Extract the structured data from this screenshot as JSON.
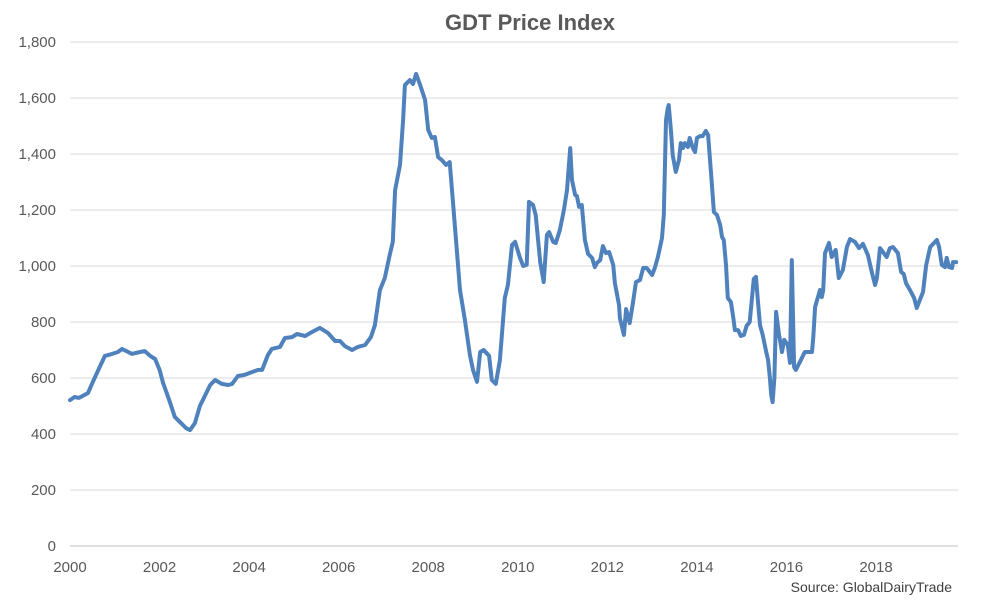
{
  "chart_data": {
    "type": "line",
    "title": "GDT Price Index",
    "xlabel": "",
    "ylabel": "",
    "source": "Source: GlobalDairyTrade",
    "xlim": [
      2000,
      2019.83
    ],
    "ylim": [
      0,
      1800
    ],
    "grid": true,
    "legend": "none",
    "line_color": "#4F81BD",
    "x_ticks": [
      2000,
      2002,
      2004,
      2006,
      2008,
      2010,
      2012,
      2014,
      2016,
      2018
    ],
    "x_tick_labels": [
      "2000",
      "2002",
      "2004",
      "2006",
      "2008",
      "2010",
      "2012",
      "2014",
      "2016",
      "2018"
    ],
    "y_ticks": [
      0,
      200,
      400,
      600,
      800,
      1000,
      1200,
      1400,
      1600,
      1800
    ],
    "y_tick_labels": [
      "0",
      "200",
      "400",
      "600",
      "800",
      "1,000",
      "1,200",
      "1,400",
      "1,600",
      "1,800"
    ],
    "series": [
      {
        "name": "GDT Price Index",
        "points": [
          [
            2000.0,
            521
          ],
          [
            2000.1,
            532
          ],
          [
            2000.2,
            529
          ],
          [
            2000.4,
            546
          ],
          [
            2000.56,
            604
          ],
          [
            2000.78,
            679
          ],
          [
            2000.94,
            686
          ],
          [
            2001.07,
            693
          ],
          [
            2001.16,
            704
          ],
          [
            2001.3,
            693
          ],
          [
            2001.38,
            686
          ],
          [
            2001.56,
            693
          ],
          [
            2001.67,
            696
          ],
          [
            2001.79,
            679
          ],
          [
            2001.9,
            668
          ],
          [
            2002.0,
            629
          ],
          [
            2002.08,
            582
          ],
          [
            2002.23,
            514
          ],
          [
            2002.34,
            461
          ],
          [
            2002.5,
            436
          ],
          [
            2002.59,
            421
          ],
          [
            2002.68,
            414
          ],
          [
            2002.79,
            439
          ],
          [
            2002.9,
            500
          ],
          [
            2003.0,
            532
          ],
          [
            2003.13,
            575
          ],
          [
            2003.24,
            593
          ],
          [
            2003.39,
            579
          ],
          [
            2003.53,
            575
          ],
          [
            2003.62,
            579
          ],
          [
            2003.75,
            607
          ],
          [
            2003.9,
            611
          ],
          [
            2004.06,
            621
          ],
          [
            2004.2,
            629
          ],
          [
            2004.29,
            629
          ],
          [
            2004.42,
            682
          ],
          [
            2004.51,
            704
          ],
          [
            2004.69,
            711
          ],
          [
            2004.8,
            743
          ],
          [
            2004.96,
            746
          ],
          [
            2005.07,
            757
          ],
          [
            2005.25,
            750
          ],
          [
            2005.4,
            764
          ],
          [
            2005.58,
            779
          ],
          [
            2005.76,
            761
          ],
          [
            2005.92,
            732
          ],
          [
            2006.03,
            732
          ],
          [
            2006.14,
            714
          ],
          [
            2006.3,
            700
          ],
          [
            2006.43,
            711
          ],
          [
            2006.59,
            718
          ],
          [
            2006.72,
            746
          ],
          [
            2006.81,
            789
          ],
          [
            2006.92,
            914
          ],
          [
            2007.03,
            957
          ],
          [
            2007.14,
            1039
          ],
          [
            2007.21,
            1086
          ],
          [
            2007.26,
            1271
          ],
          [
            2007.37,
            1361
          ],
          [
            2007.44,
            1521
          ],
          [
            2007.48,
            1646
          ],
          [
            2007.59,
            1664
          ],
          [
            2007.66,
            1650
          ],
          [
            2007.73,
            1686
          ],
          [
            2007.82,
            1646
          ],
          [
            2007.93,
            1593
          ],
          [
            2008.0,
            1486
          ],
          [
            2008.08,
            1457
          ],
          [
            2008.15,
            1461
          ],
          [
            2008.22,
            1389
          ],
          [
            2008.3,
            1379
          ],
          [
            2008.4,
            1361
          ],
          [
            2008.48,
            1371
          ],
          [
            2008.55,
            1236
          ],
          [
            2008.71,
            914
          ],
          [
            2008.82,
            807
          ],
          [
            2008.93,
            682
          ],
          [
            2009.0,
            629
          ],
          [
            2009.09,
            586
          ],
          [
            2009.16,
            693
          ],
          [
            2009.24,
            700
          ],
          [
            2009.36,
            679
          ],
          [
            2009.42,
            593
          ],
          [
            2009.51,
            579
          ],
          [
            2009.6,
            664
          ],
          [
            2009.71,
            886
          ],
          [
            2009.78,
            932
          ],
          [
            2009.87,
            1075
          ],
          [
            2009.94,
            1086
          ],
          [
            2010.05,
            1029
          ],
          [
            2010.12,
            1000
          ],
          [
            2010.2,
            1004
          ],
          [
            2010.25,
            1229
          ],
          [
            2010.34,
            1218
          ],
          [
            2010.4,
            1182
          ],
          [
            2010.5,
            1014
          ],
          [
            2010.58,
            943
          ],
          [
            2010.65,
            1111
          ],
          [
            2010.7,
            1121
          ],
          [
            2010.79,
            1086
          ],
          [
            2010.85,
            1082
          ],
          [
            2010.94,
            1129
          ],
          [
            2011.03,
            1200
          ],
          [
            2011.1,
            1271
          ],
          [
            2011.17,
            1421
          ],
          [
            2011.21,
            1307
          ],
          [
            2011.28,
            1254
          ],
          [
            2011.32,
            1250
          ],
          [
            2011.37,
            1211
          ],
          [
            2011.43,
            1218
          ],
          [
            2011.5,
            1093
          ],
          [
            2011.57,
            1043
          ],
          [
            2011.66,
            1029
          ],
          [
            2011.72,
            996
          ],
          [
            2011.77,
            1011
          ],
          [
            2011.84,
            1021
          ],
          [
            2011.9,
            1071
          ],
          [
            2011.97,
            1046
          ],
          [
            2012.04,
            1050
          ],
          [
            2012.13,
            1004
          ],
          [
            2012.17,
            939
          ],
          [
            2012.26,
            861
          ],
          [
            2012.28,
            814
          ],
          [
            2012.37,
            754
          ],
          [
            2012.42,
            846
          ],
          [
            2012.5,
            796
          ],
          [
            2012.57,
            868
          ],
          [
            2012.64,
            943
          ],
          [
            2012.73,
            950
          ],
          [
            2012.8,
            993
          ],
          [
            2012.88,
            993
          ],
          [
            2013.0,
            968
          ],
          [
            2013.06,
            993
          ],
          [
            2013.13,
            1032
          ],
          [
            2013.22,
            1100
          ],
          [
            2013.26,
            1182
          ],
          [
            2013.31,
            1521
          ],
          [
            2013.35,
            1564
          ],
          [
            2013.37,
            1575
          ],
          [
            2013.42,
            1486
          ],
          [
            2013.46,
            1396
          ],
          [
            2013.53,
            1336
          ],
          [
            2013.6,
            1379
          ],
          [
            2013.64,
            1439
          ],
          [
            2013.69,
            1421
          ],
          [
            2013.73,
            1439
          ],
          [
            2013.8,
            1425
          ],
          [
            2013.84,
            1457
          ],
          [
            2013.91,
            1421
          ],
          [
            2013.96,
            1407
          ],
          [
            2014.0,
            1457
          ],
          [
            2014.07,
            1464
          ],
          [
            2014.13,
            1464
          ],
          [
            2014.2,
            1482
          ],
          [
            2014.25,
            1468
          ],
          [
            2014.31,
            1343
          ],
          [
            2014.38,
            1193
          ],
          [
            2014.45,
            1182
          ],
          [
            2014.52,
            1146
          ],
          [
            2014.56,
            1104
          ],
          [
            2014.6,
            1093
          ],
          [
            2014.65,
            1004
          ],
          [
            2014.69,
            886
          ],
          [
            2014.76,
            871
          ],
          [
            2014.81,
            818
          ],
          [
            2014.85,
            771
          ],
          [
            2014.92,
            771
          ],
          [
            2014.98,
            750
          ],
          [
            2015.05,
            754
          ],
          [
            2015.11,
            786
          ],
          [
            2015.18,
            800
          ],
          [
            2015.23,
            886
          ],
          [
            2015.27,
            954
          ],
          [
            2015.32,
            961
          ],
          [
            2015.36,
            879
          ],
          [
            2015.41,
            789
          ],
          [
            2015.47,
            754
          ],
          [
            2015.54,
            700
          ],
          [
            2015.59,
            664
          ],
          [
            2015.63,
            600
          ],
          [
            2015.66,
            540
          ],
          [
            2015.69,
            514
          ],
          [
            2015.73,
            600
          ],
          [
            2015.77,
            836
          ],
          [
            2015.83,
            760
          ],
          [
            2015.9,
            693
          ],
          [
            2015.95,
            736
          ],
          [
            2016.03,
            718
          ],
          [
            2016.08,
            654
          ],
          [
            2016.12,
            1021
          ],
          [
            2016.17,
            639
          ],
          [
            2016.21,
            629
          ],
          [
            2016.3,
            657
          ],
          [
            2016.41,
            693
          ],
          [
            2016.57,
            693
          ],
          [
            2016.6,
            746
          ],
          [
            2016.64,
            854
          ],
          [
            2016.75,
            914
          ],
          [
            2016.79,
            889
          ],
          [
            2016.82,
            914
          ],
          [
            2016.86,
            1046
          ],
          [
            2016.95,
            1082
          ],
          [
            2017.01,
            1032
          ],
          [
            2017.1,
            1057
          ],
          [
            2017.17,
            957
          ],
          [
            2017.26,
            986
          ],
          [
            2017.35,
            1068
          ],
          [
            2017.42,
            1096
          ],
          [
            2017.53,
            1086
          ],
          [
            2017.62,
            1064
          ],
          [
            2017.71,
            1079
          ],
          [
            2017.82,
            1039
          ],
          [
            2017.91,
            975
          ],
          [
            2017.98,
            932
          ],
          [
            2018.02,
            957
          ],
          [
            2018.09,
            1064
          ],
          [
            2018.24,
            1032
          ],
          [
            2018.31,
            1064
          ],
          [
            2018.38,
            1068
          ],
          [
            2018.49,
            1046
          ],
          [
            2018.56,
            979
          ],
          [
            2018.62,
            971
          ],
          [
            2018.67,
            939
          ],
          [
            2018.76,
            914
          ],
          [
            2018.85,
            886
          ],
          [
            2018.91,
            850
          ],
          [
            2019.05,
            907
          ],
          [
            2019.12,
            1004
          ],
          [
            2019.21,
            1068
          ],
          [
            2019.36,
            1093
          ],
          [
            2019.41,
            1068
          ],
          [
            2019.47,
            1004
          ],
          [
            2019.54,
            996
          ],
          [
            2019.58,
            1029
          ],
          [
            2019.63,
            996
          ],
          [
            2019.7,
            993
          ],
          [
            2019.72,
            1014
          ],
          [
            2019.79,
            1014
          ]
        ]
      }
    ]
  }
}
